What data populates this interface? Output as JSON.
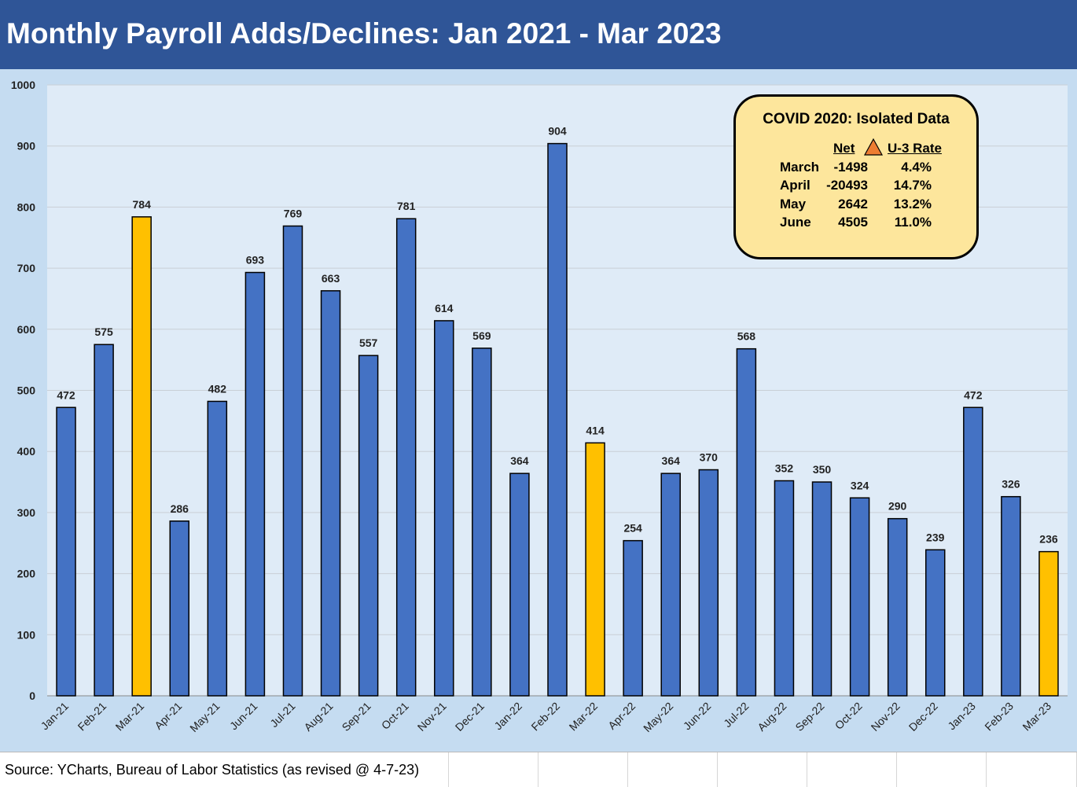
{
  "title": "Monthly Payroll Adds/Declines: Jan 2021 - Mar 2023",
  "source": "Source: YCharts, Bureau of Labor Statistics (as revised @ 4-7-23)",
  "colors": {
    "title_bg": "#2f5597",
    "bar": "#4472c4",
    "highlight": "#ffc000",
    "plot_bg": "#dfebf7",
    "outer_bg": "#c5dcf1",
    "box_bg": "#fde69c"
  },
  "covid_box": {
    "title": "COVID 2020: Isolated Data",
    "header_net": "Net",
    "header_delta_icon": "triangle-up-orange",
    "header_rate": "U-3 Rate",
    "rows": [
      {
        "month": "March",
        "net": "-1498",
        "rate": "4.4%"
      },
      {
        "month": "April",
        "net": "-20493",
        "rate": "14.7%"
      },
      {
        "month": "May",
        "net": "2642",
        "rate": "13.2%"
      },
      {
        "month": "June",
        "net": "4505",
        "rate": "11.0%"
      }
    ]
  },
  "chart_data": {
    "type": "bar",
    "title": "Monthly Payroll Adds/Declines: Jan 2021 - Mar 2023",
    "categories": [
      "Jan-21",
      "Feb-21",
      "Mar-21",
      "Apr-21",
      "May-21",
      "Jun-21",
      "Jul-21",
      "Aug-21",
      "Sep-21",
      "Oct-21",
      "Nov-21",
      "Dec-21",
      "Jan-22",
      "Feb-22",
      "Mar-22",
      "Apr-22",
      "May-22",
      "Jun-22",
      "Jul-22",
      "Aug-22",
      "Sep-22",
      "Oct-22",
      "Nov-22",
      "Dec-22",
      "Jan-23",
      "Feb-23",
      "Mar-23"
    ],
    "values": [
      472,
      575,
      784,
      286,
      482,
      693,
      769,
      663,
      557,
      781,
      614,
      569,
      364,
      904,
      414,
      254,
      364,
      370,
      568,
      352,
      350,
      324,
      290,
      239,
      472,
      326,
      236
    ],
    "highlighted": [
      "Mar-21",
      "Mar-22",
      "Mar-23"
    ],
    "ylim": [
      0,
      1000
    ],
    "yticks": [
      0,
      100,
      200,
      300,
      400,
      500,
      600,
      700,
      800,
      900,
      1000
    ],
    "grid": true,
    "legend": "none"
  }
}
